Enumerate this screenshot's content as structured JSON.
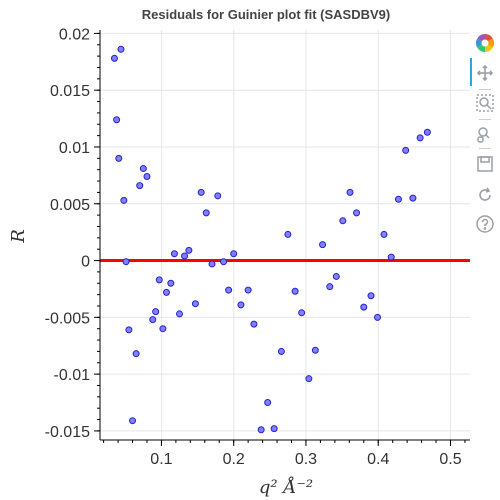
{
  "chart_data": {
    "type": "scatter",
    "title": "Residuals for Guinier plot fit (SASDBV9)",
    "xlabel": "q² Å⁻²",
    "ylabel": "R",
    "xlim": [
      0.015,
      0.527
    ],
    "ylim": [
      -0.0158,
      0.0203
    ],
    "x_ticks": [
      0.1,
      0.2,
      0.3,
      0.4,
      0.5
    ],
    "x_tick_labels": [
      "0.1",
      "0.2",
      "0.3",
      "0.4",
      "0.5"
    ],
    "y_ticks": [
      0.02,
      0.015,
      0.01,
      0.005,
      0,
      -0.005,
      -0.01,
      -0.015
    ],
    "y_tick_labels": [
      "0.02",
      "0.015",
      "0.01",
      "0.005",
      "0",
      "-0.005",
      "-0.01",
      "-0.015"
    ],
    "grid": true,
    "reference_line": {
      "y": 0,
      "color": "#ff0000"
    },
    "marker": {
      "fill": "#8080ff",
      "stroke": "#2222cc"
    },
    "series": [
      {
        "points": [
          [
            0.035,
            0.0178
          ],
          [
            0.038,
            0.0124
          ],
          [
            0.041,
            0.009
          ],
          [
            0.044,
            0.0186
          ],
          [
            0.048,
            0.0053
          ],
          [
            0.051,
            -0.0001
          ],
          [
            0.055,
            -0.0061
          ],
          [
            0.06,
            -0.0141
          ],
          [
            0.065,
            -0.0082
          ],
          [
            0.07,
            0.0066
          ],
          [
            0.075,
            0.0081
          ],
          [
            0.08,
            0.0074
          ],
          [
            0.088,
            -0.0052
          ],
          [
            0.092,
            -0.0045
          ],
          [
            0.097,
            -0.0017
          ],
          [
            0.102,
            -0.006
          ],
          [
            0.107,
            -0.0028
          ],
          [
            0.113,
            -0.002
          ],
          [
            0.118,
            0.0006
          ],
          [
            0.125,
            -0.0047
          ],
          [
            0.132,
            0.0004
          ],
          [
            0.138,
            0.0009
          ],
          [
            0.147,
            -0.0038
          ],
          [
            0.155,
            0.006
          ],
          [
            0.162,
            0.0042
          ],
          [
            0.17,
            -0.0003
          ],
          [
            0.178,
            0.0057
          ],
          [
            0.186,
            -0.0001
          ],
          [
            0.193,
            -0.0026
          ],
          [
            0.2,
            0.0006
          ],
          [
            0.21,
            -0.0039
          ],
          [
            0.22,
            -0.0026
          ],
          [
            0.228,
            -0.0056
          ],
          [
            0.238,
            -0.0149
          ],
          [
            0.247,
            -0.0125
          ],
          [
            0.256,
            -0.0148
          ],
          [
            0.266,
            -0.008
          ],
          [
            0.275,
            0.0023
          ],
          [
            0.285,
            -0.0027
          ],
          [
            0.294,
            -0.0046
          ],
          [
            0.304,
            -0.0104
          ],
          [
            0.313,
            -0.0079
          ],
          [
            0.323,
            0.0014
          ],
          [
            0.333,
            -0.0023
          ],
          [
            0.342,
            -0.0014
          ],
          [
            0.351,
            0.0035
          ],
          [
            0.361,
            0.006
          ],
          [
            0.37,
            0.0042
          ],
          [
            0.38,
            -0.0041
          ],
          [
            0.39,
            -0.0031
          ],
          [
            0.399,
            -0.005
          ],
          [
            0.408,
            0.0023
          ],
          [
            0.418,
            0.0003
          ],
          [
            0.428,
            0.0054
          ],
          [
            0.438,
            0.0097
          ],
          [
            0.448,
            0.0055
          ],
          [
            0.458,
            0.0108
          ],
          [
            0.468,
            0.0113
          ]
        ]
      }
    ]
  },
  "toolbar": {
    "tools": [
      {
        "name": "bokeh-logo",
        "icon": "bokeh-logo-icon"
      },
      {
        "name": "pan",
        "icon": "pan-icon",
        "active": true
      },
      {
        "name": "box-zoom",
        "icon": "box-zoom-icon"
      },
      {
        "name": "wheel-zoom",
        "icon": "wheel-zoom-icon"
      },
      {
        "name": "save",
        "icon": "save-icon"
      },
      {
        "name": "reset",
        "icon": "reset-icon"
      },
      {
        "name": "help",
        "icon": "help-icon"
      }
    ],
    "active_color": "#26aae1"
  }
}
